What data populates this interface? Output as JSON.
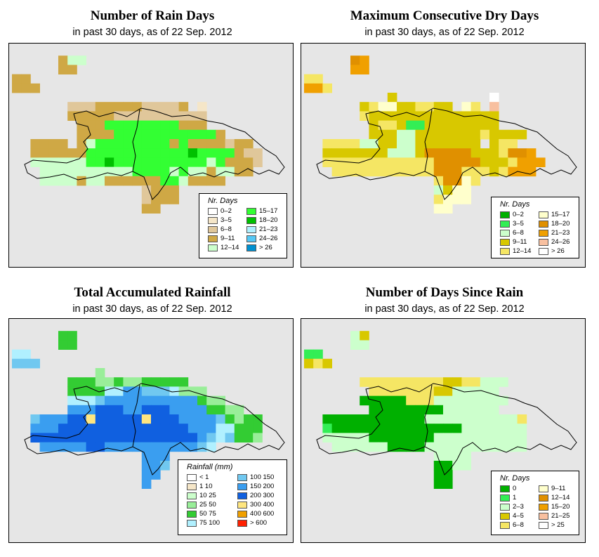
{
  "panels": [
    {
      "id": "rain-days",
      "title": "Number of Rain Days",
      "subtitle": "in past 30 days, as of  22 Sep. 2012",
      "legend_title": "Nr. Days",
      "legend": [
        {
          "label": "0–2",
          "color": "#ffffff"
        },
        {
          "label": "3–5",
          "color": "#f5e6c8"
        },
        {
          "label": "6–8",
          "color": "#e0c79a"
        },
        {
          "label": "9–11",
          "color": "#cfa845"
        },
        {
          "label": "12–14",
          "color": "#ccffcc"
        },
        {
          "label": "15–17",
          "color": "#33ff33"
        },
        {
          "label": "18–20",
          "color": "#00c000"
        },
        {
          "label": "21–23",
          "color": "#b0f0ff"
        },
        {
          "label": "24–26",
          "color": "#55c8f5"
        },
        {
          "label": "> 26",
          "color": "#0090d0"
        }
      ],
      "grid": [
        "..............................",
        ".....344......................",
        ".....33.......................",
        "33............................",
        "333...........................",
        "..............................",
        "......2223333322223.1.........",
        "......333332222222222.........",
        ".......33355555555333.........",
        ".......3333555555555553.......",
        "..3333.3455555555353333233....",
        "..3333335555555555565555322...",
        "..4444445565555555555453332...",
        "...44444444445555454434433....",
        "...44443443333335543333.......",
        "..............2333............",
        "..............2333............",
        "..............33.............."
      ]
    },
    {
      "id": "dry-days",
      "title": "Maximum Consecutive Dry Days",
      "subtitle": "in past 30 days, as of  22 Sep. 2012",
      "legend_title": "Nr. Days",
      "legend": [
        {
          "label": "0–2",
          "color": "#00b000"
        },
        {
          "label": "3–5",
          "color": "#33ee55"
        },
        {
          "label": "6–8",
          "color": "#ccffcc"
        },
        {
          "label": "9–11",
          "color": "#d8c800"
        },
        {
          "label": "12–14",
          "color": "#f5e664"
        },
        {
          "label": "15–17",
          "color": "#ffffcc"
        },
        {
          "label": "18–20",
          "color": "#e09000"
        },
        {
          "label": "21–23",
          "color": "#f0a000"
        },
        {
          "label": "24–26",
          "color": "#f8c0a0"
        },
        {
          "label": "> 26",
          "color": "#ffffff"
        }
      ],
      "grid": [
        "..............................",
        ".....67.......................",
        ".....77.......................",
        "44............................",
        "774...........................",
        ".........3..........9.........",
        "......3455334433.54.8.........",
        "......433333333333333.........",
        ".......34431133333333.........",
        ".......33322333333343333......",
        "..44442233223333333.344.......",
        "..33333332223666663334667.....",
        "..444444444444666663334777....",
        "...4444444444466644434777.....",
        "..............46654...........",
        "..............2355............",
        "..............4555............",
        "..............55.............."
      ]
    },
    {
      "id": "rainfall",
      "title": "Total Accumulated Rainfall",
      "subtitle": "in past 30 days, as of  22 Sep. 2012",
      "legend_title": "Rainfall (mm)",
      "legend": [
        {
          "label": "< 1",
          "color": "#ffffff"
        },
        {
          "label": "1   10",
          "color": "#f5e6c8"
        },
        {
          "label": "10   25",
          "color": "#ccffcc"
        },
        {
          "label": "25   50",
          "color": "#99ee99"
        },
        {
          "label": "50   75",
          "color": "#33cc33"
        },
        {
          "label": "75   100",
          "color": "#b0f0ff"
        },
        {
          "label": "100   150",
          "color": "#70c8f0"
        },
        {
          "label": "150   200",
          "color": "#3a9ef0"
        },
        {
          "label": "200   300",
          "color": "#1060e0"
        },
        {
          "label": "300   400",
          "color": "#ffe680"
        },
        {
          "label": "400   600",
          "color": "#f0a000"
        },
        {
          "label": "> 600",
          "color": "#ff2000"
        }
      ],
      "grid": [
        "..............................",
        ".....44.......................",
        ".....44.......................",
        "55............................",
        "666...........................",
        ".........3....................",
        "......4443343344444...........",
        "......444455776665333.........",
        "......55567777777777433.......",
        "......7778887788877774433.....",
        "..6777889888889888777764344...",
        "..7778888888888888877755444...",
        "..8888888888888888887656443...",
        "...7777788777777777765........",
        "..............777.............",
        "..............776.............",
        "..............77..............",
        "..............7..............."
      ]
    },
    {
      "id": "days-since",
      "title": "Number of Days Since Rain",
      "subtitle": "in past 30 days, as of  22 Sep. 2012",
      "legend_title": "Nr. Days",
      "legend": [
        {
          "label": "0",
          "color": "#00b000"
        },
        {
          "label": "1",
          "color": "#33ee55"
        },
        {
          "label": "2–3",
          "color": "#ccffcc"
        },
        {
          "label": "4–5",
          "color": "#d8c800"
        },
        {
          "label": "6–8",
          "color": "#f5e664"
        },
        {
          "label": "9–11",
          "color": "#ffffcc"
        },
        {
          "label": "12–14",
          "color": "#e09000"
        },
        {
          "label": "15–20",
          "color": "#f0a000"
        },
        {
          "label": "21–25",
          "color": "#f8c0a0"
        },
        {
          "label": "> 25",
          "color": "#ffffff"
        }
      ],
      "grid": [
        "..............................",
        ".....23.......................",
        ".....22.......................",
        "11............................",
        "343...........................",
        "...............................",
        "......4444444443344222........",
        ".......44444443322222.........",
        "......0000044422222222........",
        ".......00000000222222.........",
        "..0000000000022222222224......",
        "..1000000000000002222222......",
        "..2222200000002222222222......",
        "...222222000022222222222......",
        "..............2222............",
        "..............0022............",
        "..............00..............",
        "..............00.............."
      ]
    }
  ]
}
